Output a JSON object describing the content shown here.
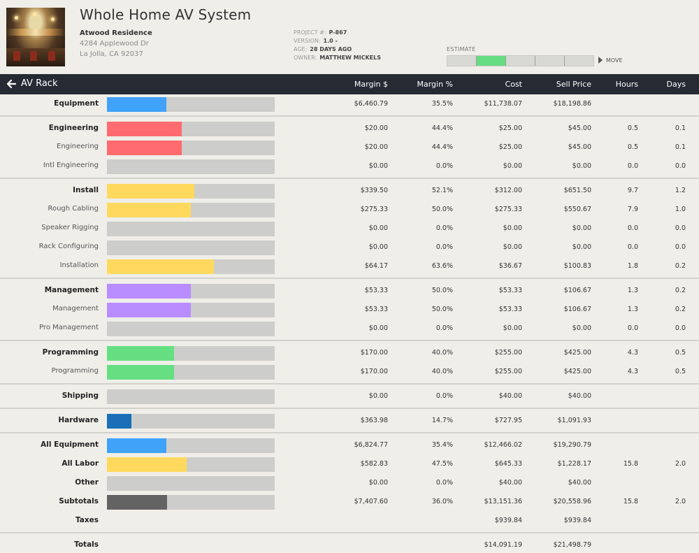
{
  "header": {
    "title": "Whole Home AV System",
    "client": "Atwood Residence",
    "address_line1": "4284 Applewood Dr",
    "address_line2": "La Jolla, CA 92037",
    "meta": [
      {
        "label": "PROJECT #:",
        "value": "P-867"
      },
      {
        "label": "VERSION:",
        "value": "1.0 -"
      },
      {
        "label": "AGE:",
        "value": "28 DAYS AGO"
      },
      {
        "label": "OWNER:",
        "value": "MATTHEW MICKELS"
      }
    ],
    "estimate_label": "ESTIMATE",
    "estimate_stage_count": 5,
    "estimate_active_stage": 2,
    "move_label": "MOVE"
  },
  "toolbar": {
    "back_icon": "arrow-left-icon",
    "title": "AV Rack",
    "columns": {
      "margin": "Margin $",
      "margin_pct": "Margin %",
      "cost": "Cost",
      "sell": "Sell Price",
      "hours": "Hours",
      "days": "Days"
    }
  },
  "colors": {
    "equipment": "#41a2f9",
    "engineering": "#ff6b6e",
    "install": "#ffd95e",
    "management": "#b98cff",
    "programming": "#66df82",
    "hardware": "#1a6fb8",
    "subtotal": "#636363",
    "bar_track": "#cdcdcb"
  },
  "groups": [
    {
      "rows": [
        {
          "label": "Equipment",
          "bold": true,
          "fill": 0.355,
          "color": "#41a2f9",
          "margin": "$6,460.79",
          "pct": "35.5%",
          "cost": "$11,738.07",
          "sell": "$18,198.86",
          "hours": "",
          "days": ""
        }
      ]
    },
    {
      "rows": [
        {
          "label": "Engineering",
          "bold": true,
          "fill": 0.444,
          "color": "#ff6b6e",
          "margin": "$20.00",
          "pct": "44.4%",
          "cost": "$25.00",
          "sell": "$45.00",
          "hours": "0.5",
          "days": "0.1"
        },
        {
          "label": "Engineering",
          "bold": false,
          "fill": 0.444,
          "color": "#ff6b6e",
          "margin": "$20.00",
          "pct": "44.4%",
          "cost": "$25.00",
          "sell": "$45.00",
          "hours": "0.5",
          "days": "0.1"
        },
        {
          "label": "Intl Engineering",
          "bold": false,
          "fill": 0,
          "color": "#ff6b6e",
          "margin": "$0.00",
          "pct": "0.0%",
          "cost": "$0.00",
          "sell": "$0.00",
          "hours": "0.0",
          "days": "0.0"
        }
      ]
    },
    {
      "rows": [
        {
          "label": "Install",
          "bold": true,
          "fill": 0.521,
          "color": "#ffd95e",
          "margin": "$339.50",
          "pct": "52.1%",
          "cost": "$312.00",
          "sell": "$651.50",
          "hours": "9.7",
          "days": "1.2"
        },
        {
          "label": "Rough Cabling",
          "bold": false,
          "fill": 0.5,
          "color": "#ffd95e",
          "margin": "$275.33",
          "pct": "50.0%",
          "cost": "$275.33",
          "sell": "$550.67",
          "hours": "7.9",
          "days": "1.0"
        },
        {
          "label": "Speaker Rigging",
          "bold": false,
          "fill": 0,
          "color": "#ffd95e",
          "margin": "$0.00",
          "pct": "0.0%",
          "cost": "$0.00",
          "sell": "$0.00",
          "hours": "0.0",
          "days": "0.0"
        },
        {
          "label": "Rack Configuring",
          "bold": false,
          "fill": 0,
          "color": "#ffd95e",
          "margin": "$0.00",
          "pct": "0.0%",
          "cost": "$0.00",
          "sell": "$0.00",
          "hours": "0.0",
          "days": "0.0"
        },
        {
          "label": "Installation",
          "bold": false,
          "fill": 0.636,
          "color": "#ffd95e",
          "margin": "$64.17",
          "pct": "63.6%",
          "cost": "$36.67",
          "sell": "$100.83",
          "hours": "1.8",
          "days": "0.2"
        }
      ]
    },
    {
      "rows": [
        {
          "label": "Management",
          "bold": true,
          "fill": 0.5,
          "color": "#b98cff",
          "margin": "$53.33",
          "pct": "50.0%",
          "cost": "$53.33",
          "sell": "$106.67",
          "hours": "1.3",
          "days": "0.2"
        },
        {
          "label": "Management",
          "bold": false,
          "fill": 0.5,
          "color": "#b98cff",
          "margin": "$53.33",
          "pct": "50.0%",
          "cost": "$53.33",
          "sell": "$106.67",
          "hours": "1.3",
          "days": "0.2"
        },
        {
          "label": "Pro Management",
          "bold": false,
          "fill": 0,
          "color": "#b98cff",
          "margin": "$0.00",
          "pct": "0.0%",
          "cost": "$0.00",
          "sell": "$0.00",
          "hours": "0.0",
          "days": "0.0"
        }
      ]
    },
    {
      "rows": [
        {
          "label": "Programming",
          "bold": true,
          "fill": 0.4,
          "color": "#66df82",
          "margin": "$170.00",
          "pct": "40.0%",
          "cost": "$255.00",
          "sell": "$425.00",
          "hours": "4.3",
          "days": "0.5"
        },
        {
          "label": "Programming",
          "bold": false,
          "fill": 0.4,
          "color": "#66df82",
          "margin": "$170.00",
          "pct": "40.0%",
          "cost": "$255.00",
          "sell": "$425.00",
          "hours": "4.3",
          "days": "0.5"
        }
      ]
    },
    {
      "rows": [
        {
          "label": "Shipping",
          "bold": true,
          "fill": 0,
          "color": "#cdcdcb",
          "margin": "$0.00",
          "pct": "0.0%",
          "cost": "$40.00",
          "sell": "$40.00",
          "hours": "",
          "days": ""
        }
      ]
    },
    {
      "rows": [
        {
          "label": "Hardware",
          "bold": true,
          "fill": 0.147,
          "color": "#1a6fb8",
          "margin": "$363.98",
          "pct": "14.7%",
          "cost": "$727.95",
          "sell": "$1,091.93",
          "hours": "",
          "days": ""
        }
      ]
    },
    {
      "rows": [
        {
          "label": "All Equipment",
          "bold": true,
          "fill": 0.354,
          "color": "#41a2f9",
          "margin": "$6,824.77",
          "pct": "35.4%",
          "cost": "$12,466.02",
          "sell": "$19,290.79",
          "hours": "",
          "days": ""
        },
        {
          "label": "All Labor",
          "bold": true,
          "fill": 0.475,
          "color": "#ffd95e",
          "margin": "$582.83",
          "pct": "47.5%",
          "cost": "$645.33",
          "sell": "$1,228.17",
          "hours": "15.8",
          "days": "2.0"
        },
        {
          "label": "Other",
          "bold": true,
          "fill": 0,
          "color": "#cdcdcb",
          "margin": "$0.00",
          "pct": "0.0%",
          "cost": "$40.00",
          "sell": "$40.00",
          "hours": "",
          "days": ""
        },
        {
          "label": "Subtotals",
          "bold": true,
          "fill": 0.36,
          "color": "#636363",
          "margin": "$7,407.60",
          "pct": "36.0%",
          "cost": "$13,151.36",
          "sell": "$20,558.96",
          "hours": "15.8",
          "days": "2.0"
        },
        {
          "label": "Taxes",
          "bold": true,
          "nobar": true,
          "margin": "",
          "pct": "",
          "cost": "$939.84",
          "sell": "$939.84",
          "hours": "",
          "days": ""
        }
      ]
    },
    {
      "rows": [
        {
          "label": "Totals",
          "bold": true,
          "nobar": true,
          "margin": "",
          "pct": "",
          "cost": "$14,091.19",
          "sell": "$21,498.79",
          "hours": "",
          "days": ""
        }
      ]
    }
  ]
}
